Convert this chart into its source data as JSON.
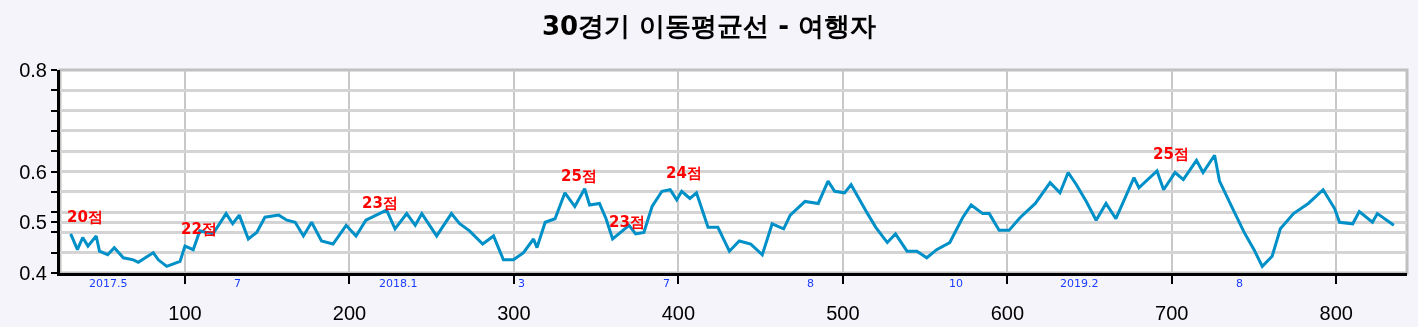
{
  "chart_data": {
    "type": "line",
    "title": "30경기 이동평균선 - 여행자",
    "x": [
      30.5,
      34.6,
      37.8,
      41,
      46,
      48,
      53,
      57,
      62.5,
      68.6,
      71.6,
      80.7,
      83.8,
      88.9,
      97,
      100,
      105,
      109,
      117,
      125,
      129,
      133,
      138.5,
      143.6,
      148.6,
      157,
      162,
      167,
      172,
      177,
      183,
      190,
      198,
      204,
      210,
      222.6,
      227.7,
      234.8,
      240,
      244,
      253,
      262,
      267,
      273,
      281,
      287.6,
      293.6,
      299.7,
      305.8,
      311.9,
      314,
      319,
      325,
      331,
      337,
      343,
      346,
      352,
      356,
      360,
      370,
      374,
      379,
      384,
      390,
      395,
      399,
      402,
      407,
      411,
      418,
      424,
      431,
      437,
      444,
      451,
      457,
      464,
      468,
      477,
      485,
      491,
      495,
      501,
      505,
      515,
      520,
      527,
      532,
      539,
      545,
      551,
      557,
      565,
      573,
      578,
      585,
      589,
      595,
      601,
      608,
      617,
      626,
      632,
      637,
      642,
      648,
      654,
      660,
      666,
      672,
      677,
      680,
      691,
      695,
      702,
      707,
      715,
      719,
      726,
      729,
      737,
      744,
      750,
      755,
      761,
      766,
      774,
      783,
      792,
      799,
      802,
      810,
      814,
      822,
      825,
      835
    ],
    "series": [
      {
        "color": "#0090c8",
        "values": [
          0.477,
          0.446,
          0.47,
          0.453,
          0.473,
          0.443,
          0.436,
          0.45,
          0.43,
          0.426,
          0.421,
          0.44,
          0.426,
          0.413,
          0.423,
          0.453,
          0.446,
          0.483,
          0.477,
          0.517,
          0.497,
          0.514,
          0.467,
          0.48,
          0.51,
          0.514,
          0.504,
          0.5,
          0.473,
          0.5,
          0.463,
          0.457,
          0.494,
          0.473,
          0.504,
          0.524,
          0.487,
          0.517,
          0.494,
          0.517,
          0.473,
          0.517,
          0.497,
          0.483,
          0.457,
          0.473,
          0.426,
          0.426,
          0.44,
          0.467,
          0.45,
          0.5,
          0.507,
          0.558,
          0.531,
          0.566,
          0.534,
          0.537,
          0.507,
          0.467,
          0.494,
          0.477,
          0.48,
          0.531,
          0.561,
          0.564,
          0.544,
          0.561,
          0.547,
          0.558,
          0.49,
          0.49,
          0.443,
          0.463,
          0.457,
          0.436,
          0.497,
          0.487,
          0.514,
          0.541,
          0.537,
          0.581,
          0.561,
          0.558,
          0.574,
          0.517,
          0.49,
          0.46,
          0.477,
          0.443,
          0.443,
          0.43,
          0.446,
          0.46,
          0.51,
          0.534,
          0.517,
          0.517,
          0.484,
          0.484,
          0.51,
          0.537,
          0.578,
          0.558,
          0.598,
          0.574,
          0.541,
          0.504,
          0.537,
          0.507,
          0.551,
          0.588,
          0.568,
          0.601,
          0.564,
          0.598,
          0.584,
          0.622,
          0.598,
          0.632,
          0.581,
          0.527,
          0.48,
          0.446,
          0.413,
          0.433,
          0.487,
          0.517,
          0.537,
          0.564,
          0.527,
          0.5,
          0.497,
          0.521,
          0.5,
          0.517,
          0.494
        ]
      }
    ],
    "xlim": [
      24,
      843
    ],
    "xticks": [
      100,
      200,
      300,
      400,
      500,
      600,
      700,
      800
    ],
    "ylim": [
      0.4,
      0.8
    ],
    "yticks": [
      0.4,
      {
        "value": 0.44,
        "label": null
      },
      {
        "value": 0.48,
        "label": null
      },
      0.5,
      {
        "value": 0.52,
        "label": null
      },
      {
        "value": 0.56,
        "label": null
      },
      0.6,
      {
        "value": 0.64,
        "label": null
      },
      {
        "value": 0.68,
        "label": null
      },
      {
        "value": 0.72,
        "label": null
      },
      {
        "value": 0.76,
        "label": null
      },
      0.8
    ],
    "grid": true,
    "marker": "none",
    "line_style": "solid",
    "annotations": [
      "2017.5",
      "7",
      "2018.1",
      "3",
      "7",
      "8",
      "10",
      "2019.2",
      "8",
      {
        "text": "20점",
        "x": 30.5,
        "y": 0.477
      },
      {
        "text": "22점",
        "x": 100,
        "y": 0.453
      },
      {
        "text": "23점",
        "x": 210,
        "y": 0.504
      },
      {
        "text": "25점",
        "x": 331,
        "y": 0.558
      },
      {
        "text": "23점",
        "x": 360,
        "y": 0.467
      },
      {
        "text": "24점",
        "x": 395,
        "y": 0.564
      },
      {
        "text": "25점",
        "x": 691,
        "y": 0.601
      }
    ]
  }
}
